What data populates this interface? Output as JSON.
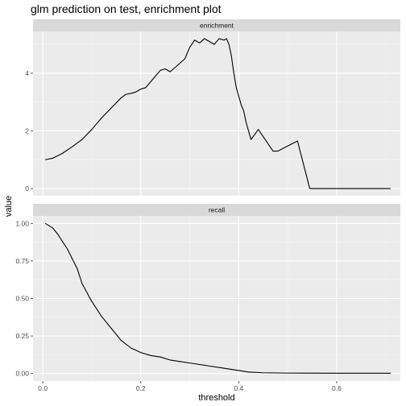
{
  "chart_data": {
    "type": "line",
    "title": "glm prediction on test, enrichment plot",
    "xlabel": "threshold",
    "ylabel": "value",
    "xlim": [
      -0.02,
      0.73
    ],
    "x_ticks": [
      0.0,
      0.2,
      0.4,
      0.6
    ],
    "x_tick_labels": [
      "0.0",
      "0.2",
      "0.4",
      "0.6"
    ],
    "grid": true,
    "panels": [
      {
        "strip": "enrichment",
        "ylim": [
          -0.25,
          5.45
        ],
        "y_ticks": [
          0,
          2,
          4
        ],
        "y_tick_labels": [
          "0",
          "2",
          "4"
        ],
        "series": [
          {
            "values": [
              [
                0.005,
                1.0
              ],
              [
                0.02,
                1.05
              ],
              [
                0.04,
                1.22
              ],
              [
                0.06,
                1.45
              ],
              [
                0.08,
                1.7
              ],
              [
                0.1,
                2.05
              ],
              [
                0.12,
                2.45
              ],
              [
                0.14,
                2.8
              ],
              [
                0.16,
                3.15
              ],
              [
                0.17,
                3.27
              ],
              [
                0.18,
                3.3
              ],
              [
                0.19,
                3.35
              ],
              [
                0.2,
                3.45
              ],
              [
                0.21,
                3.5
              ],
              [
                0.22,
                3.7
              ],
              [
                0.23,
                3.9
              ],
              [
                0.24,
                4.1
              ],
              [
                0.25,
                4.15
              ],
              [
                0.26,
                4.05
              ],
              [
                0.27,
                4.2
              ],
              [
                0.28,
                4.35
              ],
              [
                0.29,
                4.5
              ],
              [
                0.3,
                4.9
              ],
              [
                0.31,
                5.15
              ],
              [
                0.32,
                5.05
              ],
              [
                0.33,
                5.2
              ],
              [
                0.34,
                5.1
              ],
              [
                0.35,
                5.0
              ],
              [
                0.36,
                5.2
              ],
              [
                0.37,
                5.15
              ],
              [
                0.375,
                5.2
              ],
              [
                0.38,
                5.0
              ],
              [
                0.385,
                4.6
              ],
              [
                0.39,
                4.0
              ],
              [
                0.395,
                3.5
              ],
              [
                0.4,
                3.2
              ],
              [
                0.405,
                2.9
              ],
              [
                0.41,
                2.7
              ],
              [
                0.415,
                2.3
              ],
              [
                0.42,
                2.0
              ],
              [
                0.425,
                1.7
              ],
              [
                0.44,
                2.05
              ],
              [
                0.47,
                1.3
              ],
              [
                0.48,
                1.3
              ],
              [
                0.52,
                1.65
              ],
              [
                0.545,
                0.0
              ],
              [
                0.71,
                0.0
              ]
            ]
          }
        ]
      },
      {
        "strip": "recall",
        "ylim": [
          -0.05,
          1.05
        ],
        "y_ticks": [
          0.0,
          0.25,
          0.5,
          0.75,
          1.0
        ],
        "y_tick_labels": [
          "0.00",
          "0.25",
          "0.50",
          "0.75",
          "1.00"
        ],
        "series": [
          {
            "values": [
              [
                0.005,
                1.0
              ],
              [
                0.02,
                0.97
              ],
              [
                0.03,
                0.93
              ],
              [
                0.05,
                0.83
              ],
              [
                0.07,
                0.7
              ],
              [
                0.08,
                0.6
              ],
              [
                0.1,
                0.48
              ],
              [
                0.12,
                0.38
              ],
              [
                0.14,
                0.3
              ],
              [
                0.16,
                0.22
              ],
              [
                0.18,
                0.17
              ],
              [
                0.2,
                0.14
              ],
              [
                0.22,
                0.12
              ],
              [
                0.24,
                0.11
              ],
              [
                0.26,
                0.09
              ],
              [
                0.28,
                0.08
              ],
              [
                0.3,
                0.07
              ],
              [
                0.32,
                0.06
              ],
              [
                0.34,
                0.05
              ],
              [
                0.36,
                0.04
              ],
              [
                0.38,
                0.03
              ],
              [
                0.4,
                0.02
              ],
              [
                0.42,
                0.01
              ],
              [
                0.45,
                0.005
              ],
              [
                0.5,
                0.003
              ],
              [
                0.6,
                0.002
              ],
              [
                0.71,
                0.002
              ]
            ]
          }
        ]
      }
    ]
  }
}
